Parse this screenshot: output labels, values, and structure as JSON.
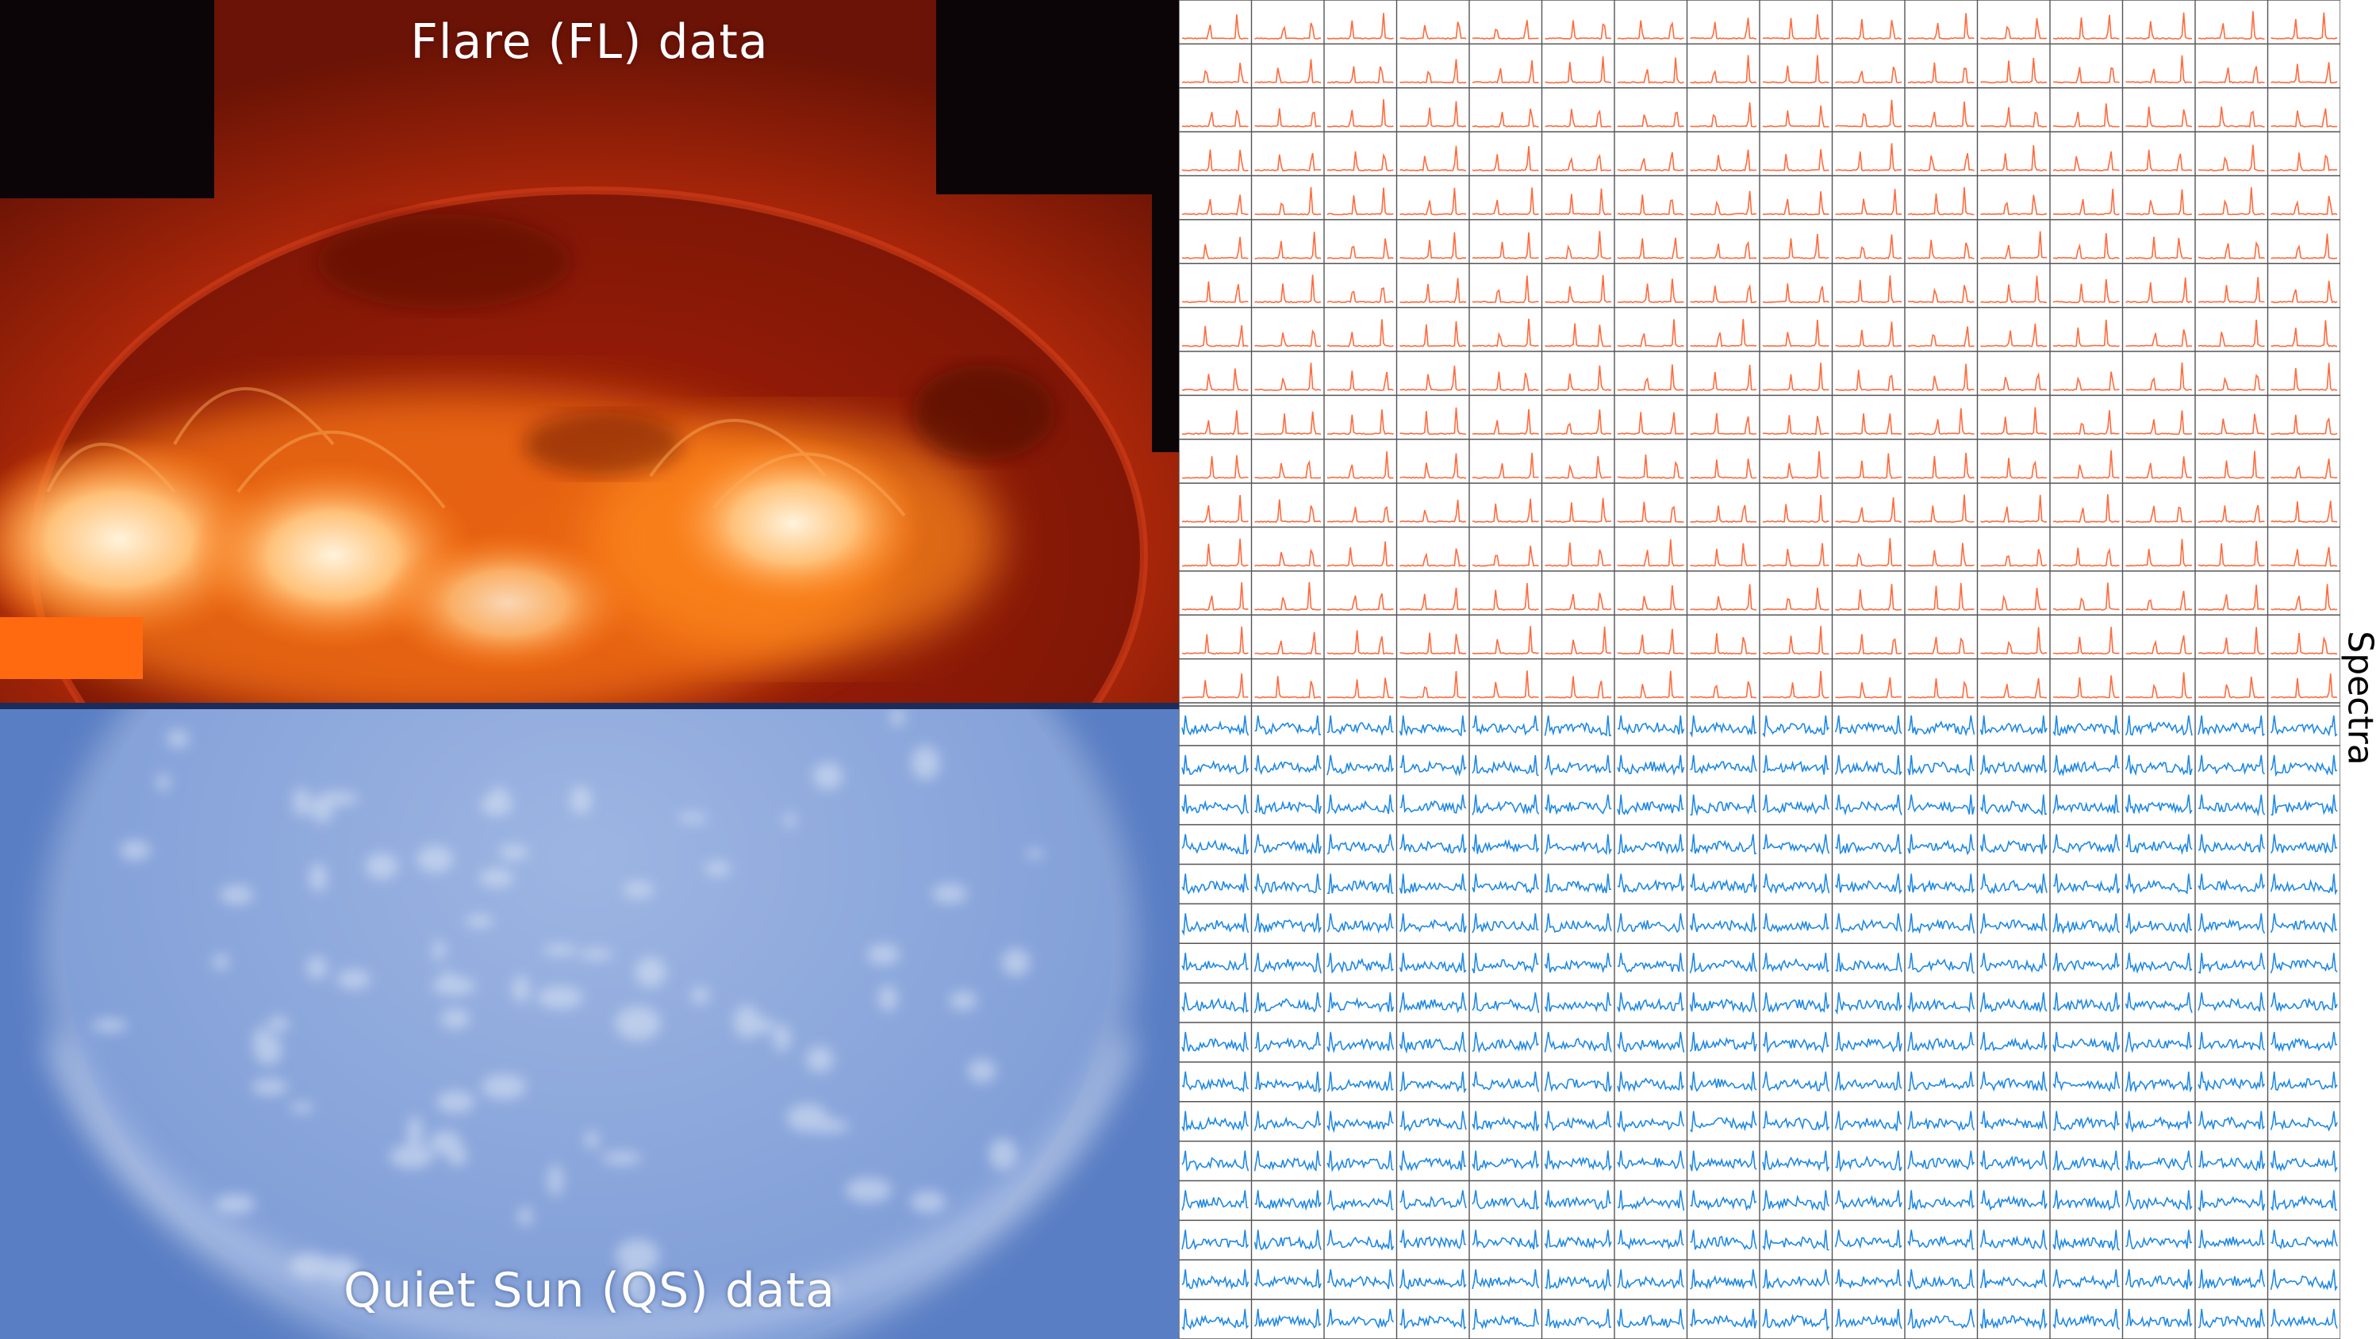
{
  "flare_panel": {
    "title": "Flare (FL) data",
    "colors": {
      "background": "#0b0508",
      "corona": "#b52a0a",
      "disk": "#8e1a08",
      "bright": "#ffd9a8",
      "hot": "#ff8a1c"
    }
  },
  "qs_panel": {
    "title": "Quiet Sun (QS) data",
    "colors": {
      "background": "#5a7ec4",
      "disk": "#8aa6da",
      "bright": "#dfe8f7"
    }
  },
  "spectra": {
    "label": "Spectra",
    "columns": 16,
    "flare_rows": 16,
    "qs_rows": 16,
    "flare_color": "#ff6a3d",
    "qs_color": "#1e88e5",
    "grid_color": "#555555"
  }
}
